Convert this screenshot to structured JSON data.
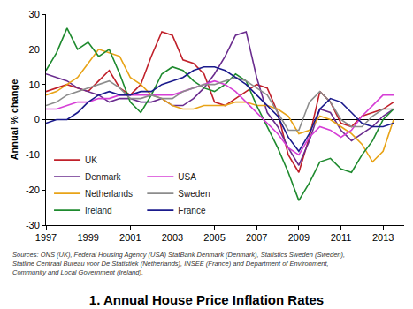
{
  "chart_data": {
    "type": "line",
    "title": "1. Annual House Price Inflation Rates",
    "y_label": "Annual % change",
    "annotations": [
      "Sources: ONS (UK), Federal Housing Agency (USA) StatBank Denmark (Denmark), Statistics Sweden (Sweden),",
      "Statline Centraal Bureau voor De Statistiek (Netherlands), INSEE (France) and Department of Environment,",
      "Community and Local Government (Ireland)."
    ],
    "x": [
      1997,
      1997.5,
      1998,
      1998.5,
      1999,
      1999.5,
      2000,
      2000.5,
      2001,
      2001.5,
      2002,
      2002.5,
      2003,
      2003.5,
      2004,
      2004.5,
      2005,
      2005.5,
      2006,
      2006.5,
      2007,
      2007.5,
      2008,
      2008.5,
      2009,
      2009.5,
      2010,
      2010.5,
      2011,
      2011.5,
      2012,
      2012.5,
      2013,
      2013.5
    ],
    "xlim": [
      1997,
      2014
    ],
    "xticks": [
      1997,
      1999,
      2001,
      2003,
      2005,
      2007,
      2009,
      2011,
      2013
    ],
    "ylim": [
      -30,
      30
    ],
    "yticks": [
      -30,
      -20,
      -10,
      0,
      10,
      20,
      30
    ],
    "grid": false,
    "legend": "lower left",
    "series": [
      {
        "name": "UK",
        "color": "#c0202a",
        "values": [
          8,
          9,
          10,
          9,
          8,
          11,
          14,
          9,
          7,
          10,
          18,
          25,
          24,
          17,
          16,
          13,
          5,
          4,
          6,
          8,
          10,
          9,
          2,
          -10,
          -15,
          -5,
          8,
          5,
          -1,
          -2,
          1,
          2,
          3,
          5
        ]
      },
      {
        "name": "Denmark",
        "color": "#6a2c8e",
        "values": [
          13,
          12,
          11,
          9,
          8,
          7,
          5,
          6,
          6,
          5,
          5,
          6,
          4,
          4,
          6,
          9,
          13,
          18,
          24,
          25,
          12,
          2,
          -2,
          -8,
          -13,
          -6,
          3,
          2,
          -3,
          -6,
          -4,
          -2,
          1,
          3
        ]
      },
      {
        "name": "Netherlands",
        "color": "#e8a317",
        "values": [
          7,
          8,
          10,
          12,
          16,
          20,
          19,
          18,
          12,
          10,
          7,
          6,
          4,
          3,
          3,
          4,
          4,
          4,
          5,
          5,
          4,
          4,
          3,
          1,
          -4,
          -3,
          1,
          0,
          -2,
          -4,
          -7,
          -12,
          -9,
          0
        ]
      },
      {
        "name": "Ireland",
        "color": "#1e8a2e",
        "values": [
          14,
          19,
          26,
          20,
          22,
          18,
          20,
          13,
          5,
          2,
          7,
          13,
          15,
          14,
          11,
          9,
          8,
          10,
          13,
          11,
          4,
          -2,
          -8,
          -15,
          -23,
          -18,
          -12,
          -11,
          -14,
          -15,
          -10,
          -6,
          0,
          3
        ]
      },
      {
        "name": "USA",
        "color": "#d63fd6",
        "values": [
          3,
          3,
          4,
          5,
          5,
          6,
          6,
          7,
          7,
          7,
          7,
          7,
          7,
          8,
          9,
          10,
          11,
          10,
          8,
          5,
          2,
          -1,
          -4,
          -8,
          -10,
          -5,
          -2,
          -3,
          -5,
          -3,
          1,
          4,
          7,
          7
        ]
      },
      {
        "name": "Sweden",
        "color": "#8c8c8c",
        "values": [
          4,
          5,
          7,
          8,
          9,
          10,
          11,
          9,
          6,
          6,
          7,
          6,
          6,
          8,
          9,
          10,
          10,
          11,
          12,
          11,
          9,
          7,
          2,
          -3,
          -3,
          5,
          8,
          5,
          0,
          -2,
          -2,
          1,
          3,
          3
        ]
      },
      {
        "name": "France",
        "color": "#1a1a8c",
        "values": [
          -1,
          0,
          0,
          2,
          5,
          7,
          8,
          7,
          7,
          8,
          8,
          10,
          11,
          12,
          14,
          15,
          15,
          14,
          12,
          10,
          7,
          4,
          1,
          -5,
          -9,
          -4,
          3,
          6,
          5,
          2,
          -1,
          -2,
          -2,
          -1
        ]
      }
    ]
  }
}
